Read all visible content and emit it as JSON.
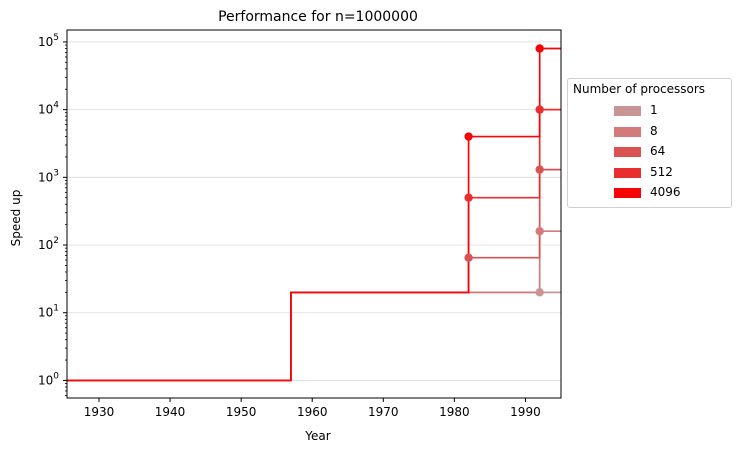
{
  "chart_data": {
    "type": "line",
    "drawstyle": "steps-post",
    "title": "Performance for n=1000000",
    "xlabel": "Year",
    "ylabel": "Speed up",
    "xlim": [
      1925.5,
      1995
    ],
    "ylim": [
      0.55,
      150000
    ],
    "yscale": "log",
    "grid": "horizontal",
    "x_ticks": [
      1930,
      1940,
      1950,
      1960,
      1970,
      1980,
      1990
    ],
    "y_ticks": [
      {
        "value": 1,
        "base": "10",
        "exp": "0"
      },
      {
        "value": 10,
        "base": "10",
        "exp": "1"
      },
      {
        "value": 100,
        "base": "10",
        "exp": "2"
      },
      {
        "value": 1000,
        "base": "10",
        "exp": "3"
      },
      {
        "value": 10000,
        "base": "10",
        "exp": "4"
      },
      {
        "value": 100000,
        "base": "10",
        "exp": "5"
      }
    ],
    "legend": {
      "title": "Number of processors",
      "placement": "outside-right"
    },
    "series": [
      {
        "name": "1",
        "color": "#c99494",
        "x": [
          1925.5,
          1957,
          1995
        ],
        "y": [
          1,
          20,
          20
        ],
        "markers": [
          [
            1992,
            20
          ]
        ]
      },
      {
        "name": "8",
        "color": "#d47a7a",
        "x": [
          1925.5,
          1957,
          1992,
          1995
        ],
        "y": [
          1,
          20,
          160,
          160
        ],
        "markers": [
          [
            1992,
            160
          ]
        ]
      },
      {
        "name": "64",
        "color": "#db5252",
        "x": [
          1925.5,
          1957,
          1982,
          1992,
          1995
        ],
        "y": [
          1,
          20,
          65,
          1300,
          1300
        ],
        "markers": [
          [
            1982,
            65
          ],
          [
            1992,
            1300
          ]
        ]
      },
      {
        "name": "512",
        "color": "#e82e2e",
        "x": [
          1925.5,
          1957,
          1982,
          1992,
          1995
        ],
        "y": [
          1,
          20,
          500,
          10000,
          10000
        ],
        "markers": [
          [
            1982,
            500
          ],
          [
            1992,
            10000
          ]
        ]
      },
      {
        "name": "4096",
        "color": "#f50505",
        "x": [
          1925.5,
          1957,
          1982,
          1992,
          1995
        ],
        "y": [
          1,
          20,
          4000,
          80000,
          80000
        ],
        "markers": [
          [
            1982,
            4000
          ],
          [
            1992,
            80000
          ]
        ]
      }
    ]
  }
}
